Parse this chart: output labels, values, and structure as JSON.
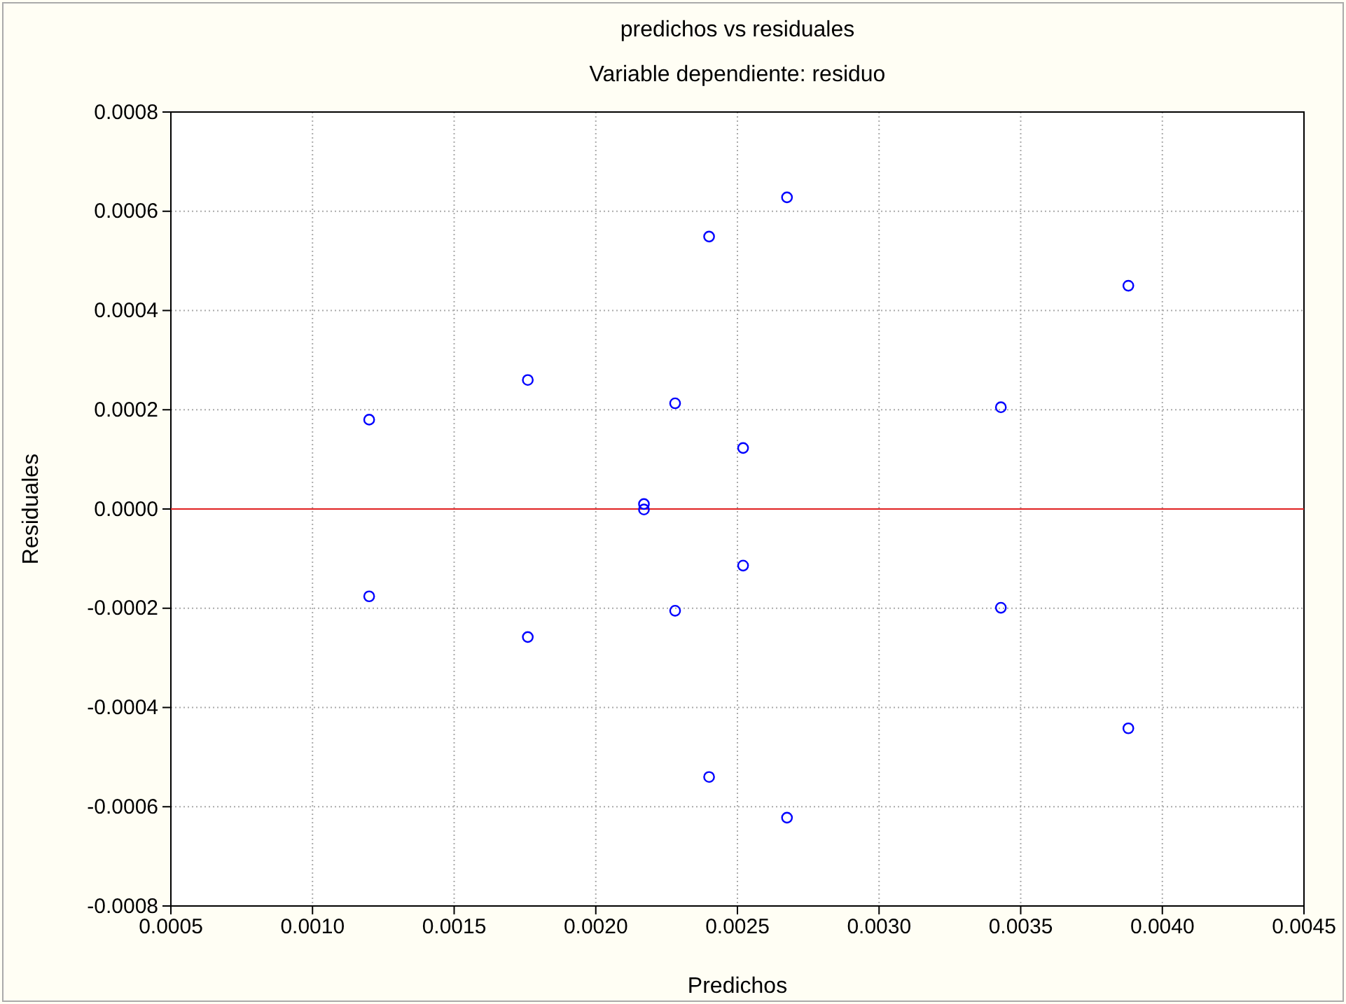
{
  "chart_data": {
    "type": "scatter",
    "title": "predichos vs residuales",
    "subtitle": "Variable dependiente: residuo",
    "xlabel": "Predichos",
    "ylabel": "Residuales",
    "x": [
      0.0012,
      0.0012,
      0.00176,
      0.00176,
      0.00217,
      0.00217,
      0.00228,
      0.00228,
      0.0024,
      0.0024,
      0.00252,
      0.00252,
      0.002675,
      0.002675,
      0.00343,
      0.00343,
      0.00388,
      0.00388
    ],
    "series": [
      {
        "color": "#0000ff",
        "values": [
          0.00018,
          -0.000176,
          0.00026,
          -0.000258,
          1e-05,
          -1e-06,
          0.000213,
          -0.000205,
          0.000549,
          -0.00054,
          0.000123,
          -0.000114,
          0.000628,
          -0.000622,
          0.000205,
          -0.000199,
          0.00045,
          -0.000442
        ]
      }
    ],
    "xlim": [
      0.0005,
      0.0045
    ],
    "xticks": [
      {
        "value": 0.0005,
        "label": "0.0005"
      },
      {
        "value": 0.001,
        "label": "0.0010"
      },
      {
        "value": 0.0015,
        "label": "0.0015"
      },
      {
        "value": 0.002,
        "label": "0.0020"
      },
      {
        "value": 0.0025,
        "label": "0.0025"
      },
      {
        "value": 0.003,
        "label": "0.0030"
      },
      {
        "value": 0.0035,
        "label": "0.0035"
      },
      {
        "value": 0.004,
        "label": "0.0040"
      },
      {
        "value": 0.0045,
        "label": "0.0045"
      }
    ],
    "ylim": [
      -0.0008,
      0.0008
    ],
    "yticks": [
      {
        "value": -0.0008,
        "label": "-0.0008"
      },
      {
        "value": -0.0006,
        "label": "-0.0006"
      },
      {
        "value": -0.0004,
        "label": "-0.0004"
      },
      {
        "value": -0.0002,
        "label": "-0.0002"
      },
      {
        "value": 0,
        "label": "0.0000"
      },
      {
        "value": 0.0002,
        "label": "0.0002"
      },
      {
        "value": 0.0004,
        "label": "0.0004"
      },
      {
        "value": 0.0006,
        "label": "0.0006"
      },
      {
        "value": 0.0008,
        "label": "0.0008"
      }
    ],
    "ref_lines": [
      {
        "axis": "y",
        "value": 0,
        "color": "#e02020"
      }
    ],
    "grid": true,
    "marker": "circle"
  }
}
